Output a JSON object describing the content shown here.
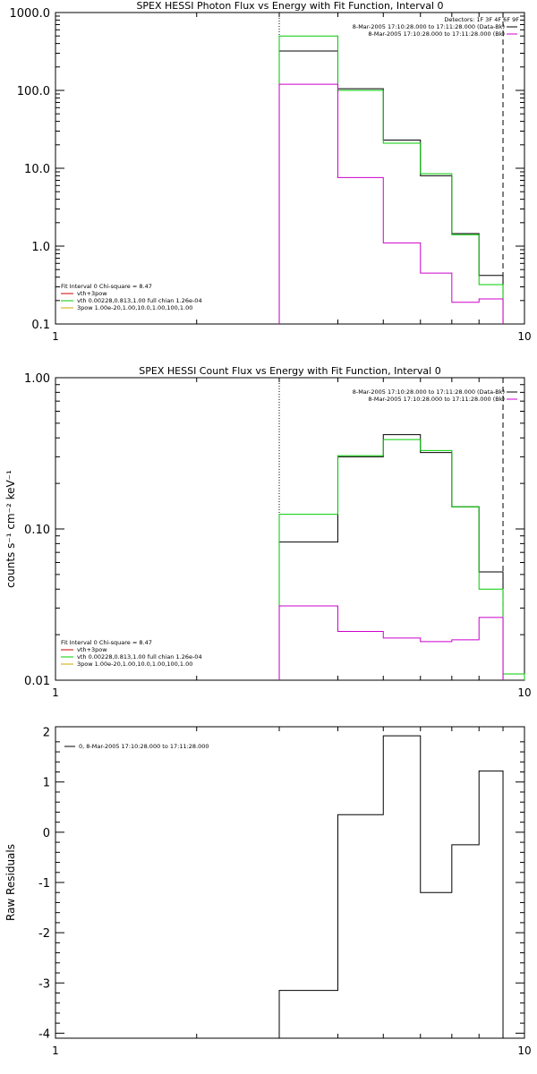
{
  "chart_data": [
    {
      "type": "step",
      "title": "SPEX HESSI Photon Flux vs Energy with Fit Function, Interval 0",
      "xlabel": "",
      "ylabel": "",
      "x_scale": "log",
      "y_scale": "log",
      "xlim": [
        1,
        10
      ],
      "ylim": [
        0.1,
        1000
      ],
      "x_ticks": [
        "1",
        "10"
      ],
      "y_ticks": [
        "0.1",
        "1.0",
        "10.0",
        "100.0",
        "1000.0"
      ],
      "y_tick_values": [
        0.1,
        1,
        10,
        100,
        1000
      ],
      "energy_edges": [
        3.0,
        4.0,
        5.0,
        6.0,
        7.0,
        8.0,
        9.0
      ],
      "vlines": [
        {
          "x": 3.0,
          "style": "dotted"
        },
        {
          "x": 9.0,
          "style": "dashed"
        }
      ],
      "series": [
        {
          "key": "black",
          "color": "#000000",
          "values": [
            320,
            105,
            23,
            8.0,
            1.45,
            0.42
          ]
        },
        {
          "key": "green",
          "color": "#00cc00",
          "values": [
            500,
            100,
            21,
            8.5,
            1.4,
            0.32
          ]
        },
        {
          "key": "magenta",
          "color": "#cc00cc",
          "values": [
            120,
            7.6,
            1.1,
            0.45,
            0.19,
            0.21
          ]
        }
      ],
      "legend_right": {
        "header": "Detectors: 1F 3F 4F 6F 9F",
        "entries": [
          {
            "text": "8-Mar-2005 17:10:28.000 to 17:11:28.000 (Data-Bk)",
            "color": "#000000"
          },
          {
            "text": "8-Mar-2005 17:10:28.000 to 17:11:28.000 (Bk)",
            "color": "#cc00cc"
          }
        ]
      },
      "legend_left": {
        "header": "Fit Interval 0   Chi-square = 8.47",
        "entries": [
          {
            "text": "vth+3pow",
            "color": "#cc0000"
          },
          {
            "text": "vth 0.00228,0.813,1.00   full chian 1.26e-04",
            "color": "#00cc00"
          },
          {
            "text": "3pow 1.00e-20,1.00,10.0,1.00,100,1.00",
            "color": "#ccaa00"
          }
        ]
      }
    },
    {
      "type": "step",
      "title": "SPEX HESSI Count Flux vs Energy with Fit Function, Interval 0",
      "xlabel": "",
      "ylabel": "counts s⁻¹ cm⁻² keV⁻¹",
      "x_scale": "log",
      "y_scale": "log",
      "xlim": [
        1,
        10
      ],
      "ylim": [
        0.01,
        1.0
      ],
      "x_ticks": [
        "1",
        "10"
      ],
      "y_ticks": [
        "0.01",
        "0.10",
        "1.00"
      ],
      "y_tick_values": [
        0.01,
        0.1,
        1.0
      ],
      "energy_edges": [
        3.0,
        4.0,
        5.0,
        6.0,
        7.0,
        8.0,
        9.0,
        10.0
      ],
      "vlines": [
        {
          "x": 3.0,
          "style": "dotted"
        },
        {
          "x": 9.0,
          "style": "dashed"
        }
      ],
      "series": [
        {
          "key": "black",
          "color": "#000000",
          "values": [
            0.082,
            0.3,
            0.42,
            0.32,
            0.14,
            0.052
          ]
        },
        {
          "key": "green",
          "color": "#00cc00",
          "values": [
            0.125,
            0.305,
            0.39,
            0.33,
            0.14,
            0.04,
            0.011
          ]
        },
        {
          "key": "magenta",
          "color": "#cc00cc",
          "values": [
            0.031,
            0.021,
            0.019,
            0.018,
            0.0185,
            0.026
          ]
        }
      ],
      "legend_right": {
        "header": "",
        "entries": [
          {
            "text": "8-Mar-2005 17:10:28.000 to 17:11:28.000 (Data-Bk)",
            "color": "#000000"
          },
          {
            "text": "8-Mar-2005 17:10:28.000 to 17:11:28.000 (Bk)",
            "color": "#cc00cc"
          }
        ]
      },
      "legend_left": {
        "header": "Fit Interval 0   Chi-square = 8.47",
        "entries": [
          {
            "text": "vth+3pow",
            "color": "#cc0000"
          },
          {
            "text": "vth 0.00228,0.813,1.00   full chian 1.26e-04",
            "color": "#00cc00"
          },
          {
            "text": "3pow 1.00e-20,1.00,10.0,1.00,100,1.00",
            "color": "#ccaa00"
          }
        ]
      }
    },
    {
      "type": "step",
      "title": "",
      "xlabel": "",
      "ylabel": "Raw Residuals",
      "x_scale": "log",
      "y_scale": "linear",
      "xlim": [
        1,
        10
      ],
      "ylim": [
        -4.1,
        2.1
      ],
      "x_ticks": [
        "1",
        "10"
      ],
      "y_ticks": [
        "2",
        "1",
        "0",
        "-1",
        "-2",
        "-3",
        "-4"
      ],
      "y_tick_values": [
        2,
        1,
        0,
        -1,
        -2,
        -3,
        -4
      ],
      "energy_edges": [
        3.0,
        4.0,
        5.0,
        6.0,
        7.0,
        8.0,
        9.0
      ],
      "vlines": [],
      "series": [
        {
          "key": "black",
          "color": "#000000",
          "values": [
            -3.15,
            0.35,
            1.92,
            -1.2,
            -0.25,
            1.22
          ]
        }
      ],
      "legend_right": {
        "header": "",
        "entries": []
      },
      "legend_left": {
        "header": "",
        "entries": [
          {
            "text": "0,  8-Mar-2005 17:10:28.000 to 17:11:28.000",
            "color": "#000000"
          }
        ]
      }
    }
  ]
}
